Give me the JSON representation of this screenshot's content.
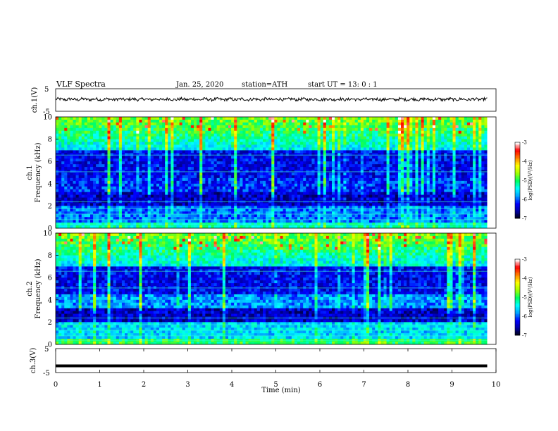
{
  "header": {
    "title": "VLF  Spectra",
    "date": "Jan.  25,  2020",
    "station": "station=ATH",
    "start": "start  UT  =    13: 0   : 1"
  },
  "chart_data": [
    {
      "type": "line",
      "ylabel": "ch.1(V)",
      "ylim": [
        -5,
        5
      ],
      "yticks": [
        "5",
        "-5"
      ],
      "xlim": [
        0,
        10
      ],
      "series": [
        {
          "values": "noisy waveform around ~0.3 V, amplitude ~±1 V, spanning 0–9.8 min"
        }
      ]
    },
    {
      "type": "heatmap",
      "ylabel": "ch.1\nFrequency  (kHz)",
      "ylim": [
        0,
        10
      ],
      "yticks": [
        "0",
        "2",
        "4",
        "6",
        "8",
        "10"
      ],
      "colorbar": {
        "label": "log(PSD)(V²/Hz)",
        "ticks": [
          "-3",
          "-4",
          "-5",
          "-6",
          "-7"
        ],
        "range": [
          -7,
          -3
        ]
      },
      "xlim": [
        0,
        9.8
      ]
    },
    {
      "type": "heatmap",
      "ylabel": "ch.2\nFrequency  (kHz)",
      "ylim": [
        0,
        10
      ],
      "yticks": [
        "0",
        "2",
        "4",
        "6",
        "8",
        "10"
      ],
      "colorbar": {
        "label": "log(PSD)(V²/Hz)",
        "ticks": [
          "-3",
          "-4",
          "-5",
          "-6",
          "-7"
        ],
        "range": [
          -7,
          -3
        ]
      },
      "xlim": [
        0,
        9.8
      ]
    },
    {
      "type": "line",
      "ylabel": "ch.3(V)",
      "ylim": [
        -5,
        5
      ],
      "yticks": [
        "5",
        "-5"
      ],
      "xlim": [
        0,
        10
      ],
      "series": [
        {
          "values": "flat line at approximately -2.2 V, 0–9.8 min"
        }
      ]
    }
  ],
  "xaxis": {
    "label": "Time  (min)",
    "ticks": [
      "0",
      "1",
      "2",
      "3",
      "4",
      "5",
      "6",
      "7",
      "8",
      "9",
      "10"
    ]
  },
  "colors": {
    "cmap": [
      "#000000",
      "#0000a0",
      "#0000ff",
      "#00a0ff",
      "#00ffff",
      "#00ff60",
      "#a0ff00",
      "#ffff00",
      "#ff8000",
      "#ff0000",
      "#ffffff"
    ]
  }
}
